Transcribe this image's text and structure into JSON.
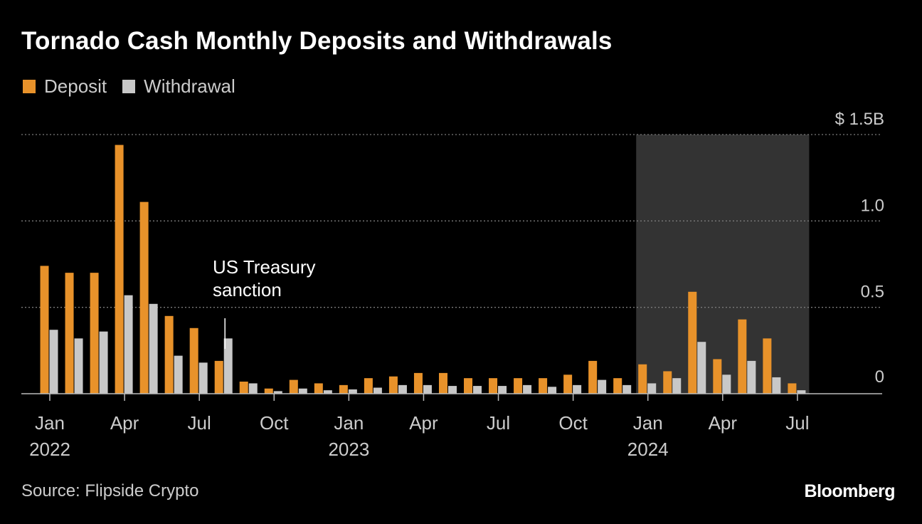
{
  "title": "Tornado Cash Monthly Deposits and Withdrawals",
  "legend": {
    "deposit": "Deposit",
    "withdrawal": "Withdrawal"
  },
  "source": "Source: Flipside Crypto",
  "logo": "Bloomberg",
  "colors": {
    "deposit": "#e8922a",
    "withdrawal": "#c8c8c8",
    "highlight": "#333333",
    "grid": "#7a7a7a",
    "text": "#cccccc"
  },
  "chart_data": {
    "type": "bar",
    "unit": "USD billions",
    "categories": [
      "2022-01",
      "2022-02",
      "2022-03",
      "2022-04",
      "2022-05",
      "2022-06",
      "2022-07",
      "2022-08",
      "2022-09",
      "2022-10",
      "2022-11",
      "2022-12",
      "2023-01",
      "2023-02",
      "2023-03",
      "2023-04",
      "2023-05",
      "2023-06",
      "2023-07",
      "2023-08",
      "2023-09",
      "2023-10",
      "2023-11",
      "2023-12",
      "2024-01",
      "2024-02",
      "2024-03",
      "2024-04",
      "2024-05",
      "2024-06",
      "2024-07"
    ],
    "series": [
      {
        "name": "Deposit",
        "color": "#e8922a",
        "values": [
          0.74,
          0.7,
          0.7,
          1.44,
          1.11,
          0.45,
          0.38,
          0.19,
          0.07,
          0.03,
          0.08,
          0.06,
          0.05,
          0.09,
          0.1,
          0.12,
          0.12,
          0.09,
          0.09,
          0.09,
          0.09,
          0.11,
          0.19,
          0.09,
          0.17,
          0.13,
          0.59,
          0.2,
          0.43,
          0.32,
          0.06
        ]
      },
      {
        "name": "Withdrawal",
        "color": "#c8c8c8",
        "values": [
          0.37,
          0.32,
          0.36,
          0.57,
          0.52,
          0.22,
          0.18,
          0.32,
          0.06,
          0.015,
          0.03,
          0.02,
          0.025,
          0.035,
          0.05,
          0.05,
          0.045,
          0.045,
          0.045,
          0.05,
          0.04,
          0.05,
          0.08,
          0.05,
          0.06,
          0.09,
          0.3,
          0.11,
          0.19,
          0.095,
          0.02
        ]
      }
    ],
    "ylim": [
      0,
      1.5
    ],
    "yticks": [
      {
        "value": 0,
        "label": "0"
      },
      {
        "value": 0.5,
        "label": "0.5"
      },
      {
        "value": 1.0,
        "label": "1.0"
      },
      {
        "value": 1.5,
        "label": "$ 1.5B"
      }
    ],
    "xticks": [
      {
        "index": 0,
        "label": "Jan",
        "year": "2022"
      },
      {
        "index": 3,
        "label": "Apr"
      },
      {
        "index": 6,
        "label": "Jul"
      },
      {
        "index": 9,
        "label": "Oct"
      },
      {
        "index": 12,
        "label": "Jan",
        "year": "2023"
      },
      {
        "index": 15,
        "label": "Apr"
      },
      {
        "index": 18,
        "label": "Jul"
      },
      {
        "index": 21,
        "label": "Oct"
      },
      {
        "index": 24,
        "label": "Jan",
        "year": "2024"
      },
      {
        "index": 27,
        "label": "Apr"
      },
      {
        "index": 30,
        "label": "Jul"
      }
    ],
    "highlight_range": [
      "2024-01",
      "2024-07"
    ],
    "annotation": {
      "index": 7,
      "lines": [
        "US Treasury",
        "sanction"
      ]
    },
    "grid": true,
    "legend_position": "top-left"
  }
}
